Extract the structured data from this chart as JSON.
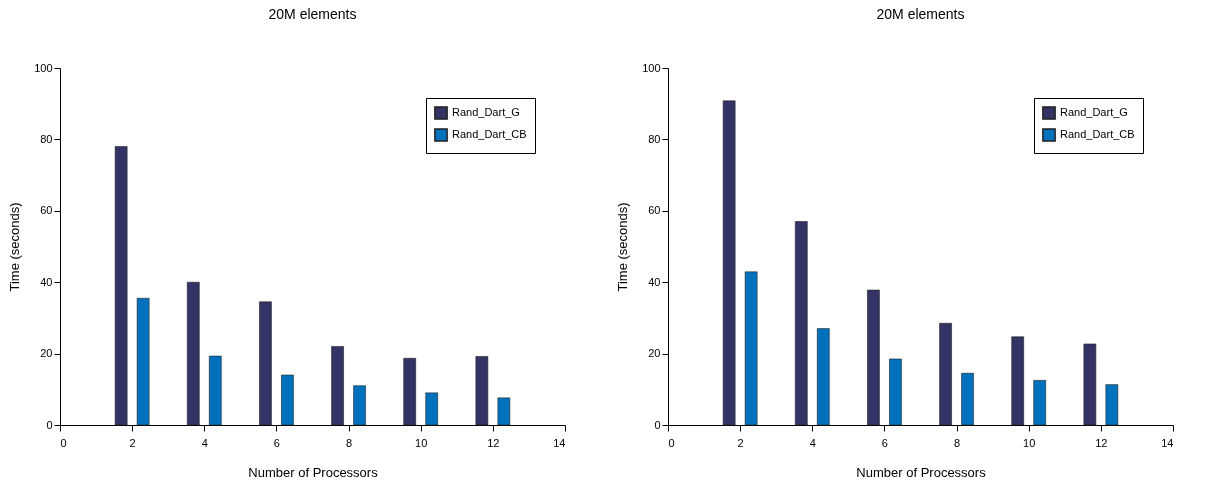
{
  "chart_data": [
    {
      "type": "bar",
      "title": "20M elements",
      "xlabel": "Number of Processors",
      "ylabel": "Time (seconds)",
      "x": [
        2,
        4,
        6,
        8,
        10,
        12
      ],
      "xlim": [
        0,
        14
      ],
      "xticks": [
        0,
        2,
        4,
        6,
        8,
        10,
        12,
        14
      ],
      "ylim": [
        0,
        100
      ],
      "yticks": [
        0,
        20,
        40,
        60,
        80,
        100
      ],
      "legend": "top right",
      "series": [
        {
          "name": "Rand_Dart_G",
          "color": "#333366",
          "values": [
            78,
            40,
            34.5,
            22,
            18.7,
            19.2
          ]
        },
        {
          "name": "Rand_Dart_CB",
          "color": "#0072bd",
          "values": [
            35.5,
            19.3,
            14,
            11,
            9,
            7.6
          ]
        }
      ]
    },
    {
      "type": "bar",
      "title": "20M elements",
      "xlabel": "Number of Processors",
      "ylabel": "Time (seconds)",
      "x": [
        2,
        4,
        6,
        8,
        10,
        12
      ],
      "xlim": [
        0,
        14
      ],
      "xticks": [
        0,
        2,
        4,
        6,
        8,
        10,
        12,
        14
      ],
      "ylim": [
        0,
        100
      ],
      "yticks": [
        0,
        20,
        40,
        60,
        80,
        100
      ],
      "legend": "top right",
      "series": [
        {
          "name": "Rand_Dart_G",
          "color": "#333366",
          "values": [
            90.8,
            57,
            37.8,
            28.5,
            24.7,
            22.7
          ]
        },
        {
          "name": "Rand_Dart_CB",
          "color": "#0072bd",
          "values": [
            42.9,
            27,
            18.5,
            14.5,
            12.5,
            11.3
          ]
        }
      ]
    }
  ]
}
